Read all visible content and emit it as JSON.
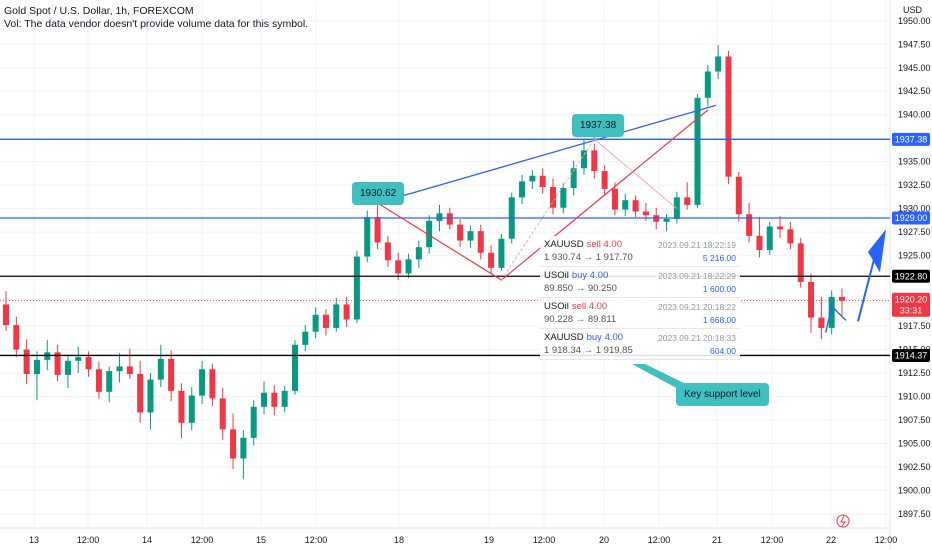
{
  "header": {
    "title": "Gold Spot / U.S. Dollar, 1h, FOREXCOM",
    "volume_note": "Vol: The data vendor doesn't provide volume data for this symbol."
  },
  "chart_data": {
    "type": "candlestick",
    "currency": "USD",
    "ylim": [
      1896,
      1952
    ],
    "y_ticks": [
      1897.5,
      1900.0,
      1902.5,
      1905.0,
      1907.5,
      1910.0,
      1912.5,
      1915.0,
      1917.5,
      1920.0,
      1922.5,
      1925.0,
      1927.5,
      1930.0,
      1932.5,
      1935.0,
      1937.5,
      1940.0,
      1942.5,
      1945.0,
      1947.5,
      1950.0
    ],
    "x_tick_labels": [
      "13",
      "12:00",
      "14",
      "12:00",
      "15",
      "12:00",
      "18",
      "19",
      "12:00",
      "20",
      "12:00",
      "21",
      "12:00",
      "22",
      "12:00"
    ],
    "grid": true,
    "colors": {
      "up": "#089981",
      "down": "#f23645",
      "blue_line": "#2962ff",
      "black_line": "#000000",
      "red_line": "#f23645",
      "callout": "#3fbfc0"
    },
    "candles": [
      [
        1919.8,
        1921.2,
        1917.0,
        1917.6
      ],
      [
        1917.6,
        1918.5,
        1914.2,
        1915.0
      ],
      [
        1915.0,
        1916.1,
        1911.3,
        1912.4
      ],
      [
        1912.4,
        1914.8,
        1909.6,
        1913.9
      ],
      [
        1913.9,
        1916.0,
        1912.8,
        1914.7
      ],
      [
        1914.7,
        1915.5,
        1911.6,
        1912.3
      ],
      [
        1912.3,
        1914.5,
        1910.9,
        1913.8
      ],
      [
        1913.8,
        1915.3,
        1912.5,
        1914.2
      ],
      [
        1914.2,
        1914.8,
        1912.1,
        1912.9
      ],
      [
        1912.9,
        1913.7,
        1909.8,
        1910.5
      ],
      [
        1910.5,
        1913.2,
        1909.4,
        1912.7
      ],
      [
        1912.7,
        1914.6,
        1911.5,
        1913.2
      ],
      [
        1913.2,
        1915.1,
        1911.9,
        1912.4
      ],
      [
        1912.4,
        1913.8,
        1907.2,
        1908.3
      ],
      [
        1908.3,
        1912.5,
        1906.5,
        1911.8
      ],
      [
        1911.8,
        1915.5,
        1911.0,
        1914.0
      ],
      [
        1914.0,
        1914.9,
        1909.5,
        1910.6
      ],
      [
        1910.6,
        1911.4,
        1905.6,
        1907.2
      ],
      [
        1907.2,
        1911.0,
        1906.4,
        1910.1
      ],
      [
        1910.1,
        1913.8,
        1909.2,
        1912.9
      ],
      [
        1912.9,
        1913.5,
        1909.0,
        1909.8
      ],
      [
        1909.8,
        1910.9,
        1905.4,
        1906.5
      ],
      [
        1906.5,
        1908.2,
        1902.3,
        1903.4
      ],
      [
        1903.4,
        1906.4,
        1901.2,
        1905.6
      ],
      [
        1905.6,
        1909.6,
        1904.8,
        1908.9
      ],
      [
        1908.9,
        1911.6,
        1908.1,
        1910.4
      ],
      [
        1910.4,
        1911.2,
        1908.0,
        1908.9
      ],
      [
        1908.9,
        1911.1,
        1908.3,
        1910.6
      ],
      [
        1910.6,
        1916.0,
        1910.2,
        1915.5
      ],
      [
        1915.5,
        1917.6,
        1914.8,
        1916.9
      ],
      [
        1916.9,
        1919.5,
        1916.2,
        1918.7
      ],
      [
        1918.7,
        1919.3,
        1916.5,
        1917.3
      ],
      [
        1917.3,
        1920.5,
        1916.9,
        1919.8
      ],
      [
        1919.8,
        1920.6,
        1917.4,
        1918.2
      ],
      [
        1918.2,
        1925.5,
        1917.8,
        1924.9
      ],
      [
        1924.9,
        1929.8,
        1924.3,
        1929.1
      ],
      [
        1929.1,
        1930.6,
        1925.7,
        1926.4
      ],
      [
        1926.4,
        1927.1,
        1923.8,
        1924.5
      ],
      [
        1924.5,
        1925.3,
        1922.4,
        1923.1
      ],
      [
        1923.1,
        1925.2,
        1922.6,
        1924.6
      ],
      [
        1924.6,
        1926.6,
        1923.7,
        1925.9
      ],
      [
        1925.9,
        1929.3,
        1925.2,
        1928.7
      ],
      [
        1928.7,
        1930.4,
        1927.6,
        1929.5
      ],
      [
        1929.5,
        1930.1,
        1927.8,
        1928.3
      ],
      [
        1928.3,
        1928.9,
        1925.9,
        1926.6
      ],
      [
        1926.6,
        1928.2,
        1925.8,
        1927.6
      ],
      [
        1927.6,
        1928.3,
        1924.6,
        1925.3
      ],
      [
        1925.3,
        1926.1,
        1923.1,
        1923.7
      ],
      [
        1923.7,
        1927.3,
        1923.4,
        1926.8
      ],
      [
        1926.8,
        1931.7,
        1926.3,
        1931.2
      ],
      [
        1931.2,
        1933.6,
        1930.5,
        1932.9
      ],
      [
        1932.9,
        1934.1,
        1932.1,
        1933.5
      ],
      [
        1933.5,
        1934.3,
        1931.6,
        1932.3
      ],
      [
        1932.3,
        1933.2,
        1929.4,
        1930.1
      ],
      [
        1930.1,
        1932.7,
        1929.5,
        1932.2
      ],
      [
        1932.2,
        1935.1,
        1931.4,
        1934.3
      ],
      [
        1934.3,
        1937.4,
        1933.6,
        1936.2
      ],
      [
        1936.2,
        1936.9,
        1933.2,
        1934.0
      ],
      [
        1934.0,
        1934.6,
        1931.4,
        1932.1
      ],
      [
        1932.1,
        1932.8,
        1929.3,
        1929.9
      ],
      [
        1929.9,
        1931.6,
        1929.2,
        1930.9
      ],
      [
        1930.9,
        1931.4,
        1929.1,
        1929.7
      ],
      [
        1929.7,
        1930.6,
        1928.7,
        1929.3
      ],
      [
        1929.3,
        1930.1,
        1927.8,
        1928.6
      ],
      [
        1928.6,
        1929.4,
        1927.6,
        1928.9
      ],
      [
        1928.9,
        1931.8,
        1928.4,
        1931.2
      ],
      [
        1931.2,
        1932.8,
        1929.9,
        1930.4
      ],
      [
        1930.4,
        1942.2,
        1930.1,
        1941.8
      ],
      [
        1941.8,
        1945.3,
        1940.9,
        1944.6
      ],
      [
        1944.6,
        1947.4,
        1943.8,
        1946.2
      ],
      [
        1946.2,
        1946.8,
        1932.6,
        1933.4
      ],
      [
        1933.4,
        1933.9,
        1928.6,
        1929.4
      ],
      [
        1929.4,
        1930.6,
        1926.4,
        1927.1
      ],
      [
        1927.1,
        1929.1,
        1924.8,
        1925.6
      ],
      [
        1925.6,
        1928.6,
        1925.1,
        1928.1
      ],
      [
        1928.1,
        1929.2,
        1926.9,
        1927.8
      ],
      [
        1927.8,
        1928.6,
        1925.7,
        1926.3
      ],
      [
        1926.3,
        1926.9,
        1921.6,
        1922.2
      ],
      [
        1922.2,
        1923.1,
        1916.8,
        1918.4
      ],
      [
        1918.4,
        1920.6,
        1916.1,
        1917.3
      ],
      [
        1917.3,
        1921.3,
        1916.6,
        1920.6
      ],
      [
        1920.6,
        1921.5,
        1918.6,
        1920.2
      ]
    ],
    "levels": [
      {
        "name": "blue-resistance",
        "price": 1937.38,
        "color": "#2962ff"
      },
      {
        "name": "blue-resistance-2",
        "price": 1929.0,
        "color": "#2962ff"
      },
      {
        "name": "black-level-1",
        "price": 1922.8,
        "color": "#000000"
      },
      {
        "name": "black-support",
        "price": 1914.37,
        "color": "#000000"
      }
    ],
    "current_price": "1920.20",
    "countdown": "33:31",
    "price_tags": [
      "1937.38",
      "1929.00",
      "1922.80",
      "1914.37"
    ],
    "callouts": {
      "high1": "1930.62",
      "high2": "1937.38",
      "support": "Key support level"
    },
    "trades": [
      {
        "symbol": "XAUUSD",
        "side": "sell",
        "qty": "4.00",
        "time": "2023.09.21 18:22:19",
        "prices": "1 930.74 → 1 917.70",
        "amount": "5 216.00"
      },
      {
        "symbol": "USOil",
        "side": "buy",
        "qty": "4.00",
        "time": "2023.09.21 18:22:29",
        "prices": "89.850 → 90.250",
        "amount": "1 600.00"
      },
      {
        "symbol": "USOil",
        "side": "sell",
        "qty": "4.00",
        "time": "2023.09.21 20:18:22",
        "prices": "90.228 → 89.811",
        "amount": "1 668.00"
      },
      {
        "symbol": "XAUUSD",
        "side": "buy",
        "qty": "4.00",
        "time": "2023.09.21 20:18:33",
        "prices": "1 918.34 → 1 919.85",
        "amount": "604.00"
      }
    ]
  }
}
